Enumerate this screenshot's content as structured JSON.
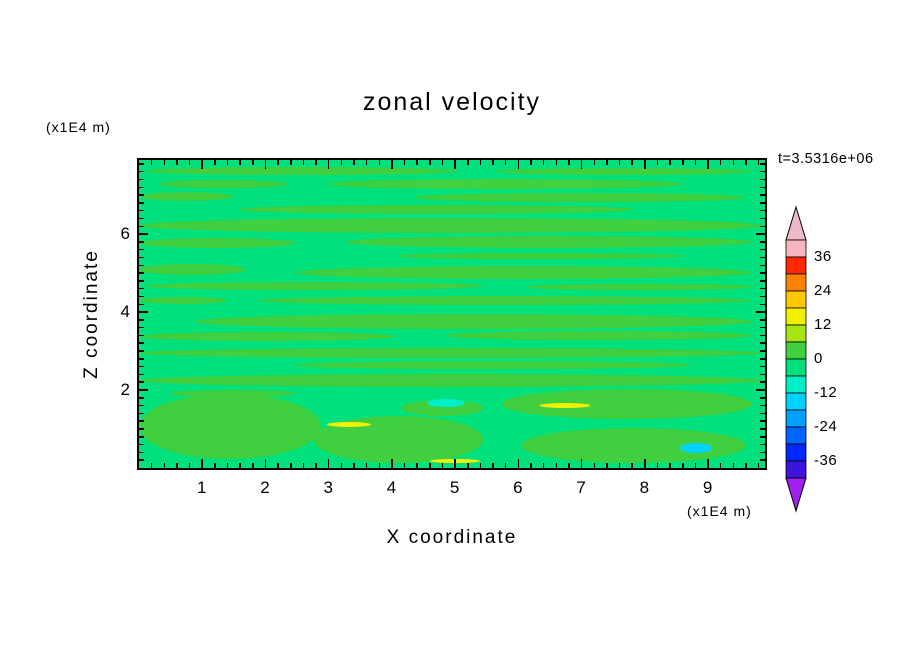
{
  "chart_data": {
    "type": "contour",
    "title": "zonal velocity",
    "xlabel": "X coordinate",
    "ylabel": "Z coordinate",
    "x_unit_label": "(x1E4 m)",
    "z_unit_label": "(x1E4 m)",
    "annotation": "t=3.5316e+06",
    "xlim": [
      0,
      9.9
    ],
    "zlim": [
      0,
      7.9
    ],
    "x_major_ticks": [
      1,
      2,
      3,
      4,
      5,
      6,
      7,
      8,
      9
    ],
    "z_major_ticks": [
      2,
      4,
      6
    ],
    "minor_tick_step": 0.2,
    "contour_interval": 6,
    "colorbar": {
      "range": [
        -42,
        42
      ],
      "tick_labels": [
        "36",
        "24",
        "12",
        "0",
        "-12",
        "-24",
        "-36"
      ],
      "band_colors_top_to_bottom": [
        "#f6b6c1",
        "#ff2800",
        "#ff8200",
        "#ffc800",
        "#f0f000",
        "#a8e414",
        "#3fcf3f",
        "#00e17e",
        "#00efc8",
        "#00d2ff",
        "#00a0ff",
        "#0064ff",
        "#0028ff",
        "#3c14dc"
      ],
      "over_color": "#f0b9c8",
      "under_color": "#a020f0"
    },
    "field": {
      "background_band": "-6 to 0",
      "background_color": "#00e17e",
      "palette": {
        "g": "#3fcf3f",
        "t": "#00efc8",
        "c": "#00d2ff",
        "y": "#f0f000"
      },
      "streaks": [
        [
          1,
          2.2,
          50,
          2.6,
          "g"
        ],
        [
          57,
          2.6,
          41,
          2.2,
          "g"
        ],
        [
          3,
          6.4,
          21,
          2.6,
          "g"
        ],
        [
          30,
          6.1,
          57,
          3.2,
          "g"
        ],
        [
          0,
          10.3,
          15,
          2.9,
          "g"
        ],
        [
          44,
          10.6,
          53,
          3.2,
          "g"
        ],
        [
          16,
          14.7,
          63,
          2.9,
          "g"
        ],
        [
          0,
          18.9,
          99.5,
          4.8,
          "g"
        ],
        [
          0,
          25.3,
          25,
          3.2,
          "g"
        ],
        [
          33,
          24.7,
          65,
          3.8,
          "g"
        ],
        [
          41,
          30.1,
          46,
          2.2,
          "g"
        ],
        [
          0,
          33.7,
          17,
          3.5,
          "g"
        ],
        [
          25,
          34.3,
          73,
          4.2,
          "g"
        ],
        [
          1,
          39.7,
          54,
          2.6,
          "g"
        ],
        [
          62,
          40.1,
          36,
          2.2,
          "g"
        ],
        [
          19,
          44.2,
          79,
          2.9,
          "g"
        ],
        [
          0,
          44.6,
          14,
          2.2,
          "g"
        ],
        [
          9,
          50,
          89,
          4.8,
          "g"
        ],
        [
          0,
          55.8,
          41,
          2.9,
          "g"
        ],
        [
          49,
          55.4,
          49,
          3.2,
          "g"
        ],
        [
          0,
          60.9,
          99.5,
          3.4,
          "g"
        ],
        [
          25,
          65.4,
          63,
          2.4,
          "g"
        ],
        [
          0,
          69.6,
          99.5,
          4.2,
          "g"
        ],
        [
          5,
          74.7,
          20,
          2.2,
          "g"
        ],
        [
          0,
          76,
          29,
          21,
          "g"
        ],
        [
          28,
          83,
          27,
          15.5,
          "g"
        ],
        [
          58,
          74.5,
          40,
          9.5,
          "g"
        ],
        [
          61,
          87,
          36,
          11.5,
          "g"
        ],
        [
          42,
          78,
          13,
          5,
          "g"
        ],
        [
          46,
          77.5,
          6,
          2.6,
          "t"
        ],
        [
          86.5,
          92,
          5,
          3.2,
          "c"
        ],
        [
          30,
          85,
          7,
          1.6,
          "y"
        ],
        [
          46.5,
          97,
          8,
          1.4,
          "y"
        ],
        [
          64,
          79,
          8,
          1.4,
          "y"
        ]
      ]
    }
  }
}
